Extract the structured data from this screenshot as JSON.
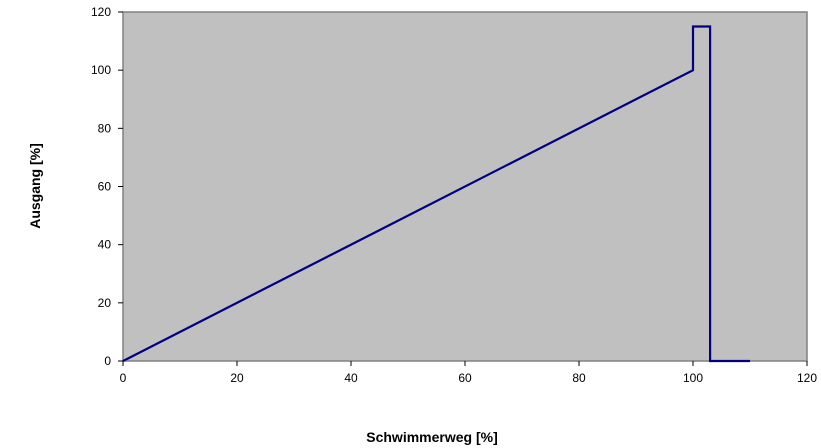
{
  "chart_data": {
    "type": "line",
    "title": "",
    "xlabel": "Schwimmerweg [%]",
    "ylabel": "Ausgang [%]",
    "xlim": [
      0,
      120
    ],
    "ylim": [
      0,
      120
    ],
    "x_ticks": [
      0,
      20,
      40,
      60,
      80,
      100,
      120
    ],
    "y_ticks": [
      0,
      20,
      40,
      60,
      80,
      100,
      120
    ],
    "grid": false,
    "legend": "none",
    "plot_background": "#c0c0c0",
    "line_color": "#000080",
    "series": [
      {
        "x": [
          0,
          100,
          100,
          103,
          103,
          110
        ],
        "y": [
          0,
          100,
          115,
          115,
          0,
          0
        ]
      }
    ]
  }
}
